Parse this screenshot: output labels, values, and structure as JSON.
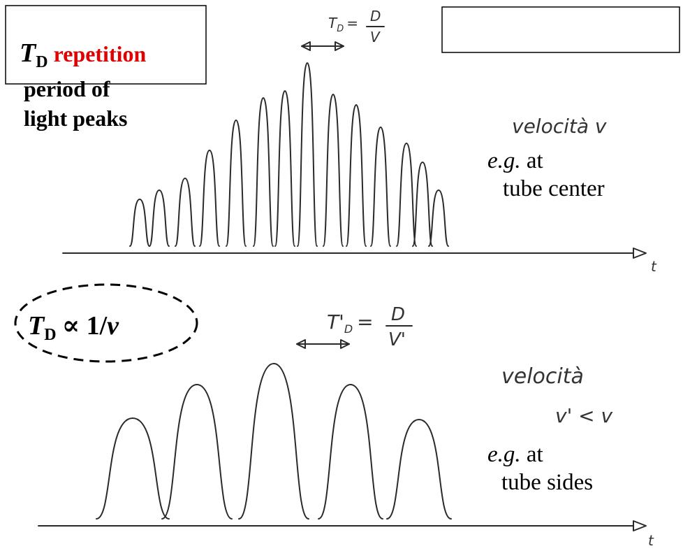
{
  "caption": {
    "symbol": "T",
    "subscript": "D",
    "highlight": "repetition",
    "line2": "period of",
    "line3": "light peaks"
  },
  "relation": {
    "symbol": "T",
    "subscript": "D",
    "operator": "∝ 1/",
    "variable": "v"
  },
  "top_panel": {
    "period": {
      "symbol": "T",
      "subscript": "D",
      "equals": "=",
      "numerator": "D",
      "denominator": "V"
    },
    "speed": "velocità v",
    "note_prefix": "e.g.",
    "note_line1": " at",
    "note_line2": "tube center",
    "axis": "t"
  },
  "bottom_panel": {
    "period": {
      "symbol": "T'",
      "subscript": "D",
      "equals": "=",
      "numerator": "D",
      "denominator": "V'"
    },
    "speed_line1": "velocità",
    "speed_line2": "v' < v",
    "note_prefix": "e.g.",
    "note_line1": " at",
    "note_line2": "tube sides",
    "axis": "t"
  }
}
